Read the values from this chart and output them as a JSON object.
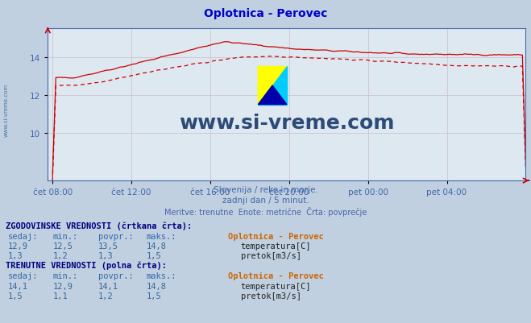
{
  "title": "Oplotnica - Perovec",
  "title_color": "#0000cc",
  "bg_color": "#c0d0e0",
  "plot_bg_color": "#dde8f0",
  "x_labels": [
    "čet 08:00",
    "čet 12:00",
    "čet 16:00",
    "čet 20:00",
    "pet 00:00",
    "pet 04:00"
  ],
  "x_ticks_norm": [
    0.0,
    0.1667,
    0.3333,
    0.5,
    0.6667,
    0.8333
  ],
  "y_ticks": [
    10,
    12,
    14
  ],
  "y_min": 7.5,
  "y_max": 15.5,
  "temp_color": "#cc0000",
  "flow_color": "#00aa00",
  "watermark_text": "www.si-vreme.com",
  "watermark_color": "#1a3a6a",
  "subtitle1": "Slovenija / reke in morje.",
  "subtitle2": "zadnji dan / 5 minut.",
  "subtitle3": "Meritve: trenutne  Enote: metrične  Črta: povprečje",
  "subtitle_color": "#4466aa",
  "table_header_color": "#000080",
  "table_label_color": "#3366aa",
  "table_value_color": "#336699",
  "legend_title_color": "#cc6600",
  "hist_header": "ZGODOVINSKE VREDNOSTI (črtkana črta):",
  "curr_header": "TRENUTNE VREDNOSTI (polna črta):",
  "col_headers": [
    "sedaj:",
    "min.:",
    "povpr.:",
    "maks.:"
  ],
  "station_label": "Oplotnica - Perovec",
  "hist_temp": [
    12.9,
    12.5,
    13.5,
    14.8
  ],
  "hist_flow": [
    1.3,
    1.2,
    1.3,
    1.5
  ],
  "curr_temp": [
    14.1,
    12.9,
    14.1,
    14.8
  ],
  "curr_flow": [
    1.5,
    1.1,
    1.2,
    1.5
  ],
  "temp_label": "temperatura[C]",
  "flow_label": "pretok[m3/s]",
  "n_points": 288
}
